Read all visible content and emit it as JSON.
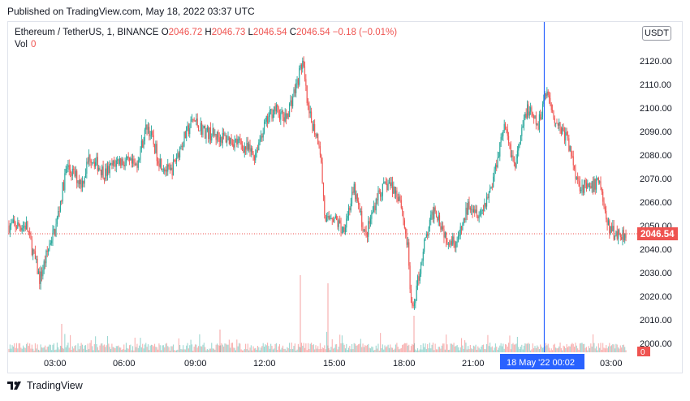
{
  "header": {
    "published_text": "Published on TradingView.com, May 18, 2022 03:37 UTC"
  },
  "legend": {
    "symbol": "Ethereum / TetherUS, 1, BINANCE",
    "open_label": "O",
    "open_value": "2046.72",
    "high_label": "H",
    "high_value": "2046.73",
    "low_label": "L",
    "low_value": "2046.54",
    "close_label": "C",
    "close_value": "2046.54",
    "change": "−0.18 (−0.01%)",
    "vol_label": "Vol",
    "vol_value": "0"
  },
  "currency_button": "USDT",
  "price_tag": "2046.54",
  "vol_tag": "0",
  "crosshair_time": "18 May '22   00:02",
  "footer": {
    "brand": "TradingView"
  },
  "colors": {
    "up": "#26a69a",
    "down": "#ef5350",
    "crosshair": "#2962ff",
    "last_price": "#ef5350"
  },
  "chart_data": {
    "type": "candlestick",
    "y_ticks": [
      "2000.00",
      "2010.00",
      "2020.00",
      "2030.00",
      "2040.00",
      "2050.00",
      "2060.00",
      "2070.00",
      "2080.00",
      "2090.00",
      "2100.00",
      "2110.00",
      "2120.00"
    ],
    "x_ticks": [
      "03:00",
      "06:00",
      "09:00",
      "12:00",
      "15:00",
      "18:00",
      "21:00",
      "03:00"
    ],
    "ylim": [
      1997,
      2131
    ],
    "last_price": 2046.54,
    "approx_close_path": [
      {
        "t": "01:45",
        "v": 2050
      },
      {
        "t": "02:20",
        "v": 2027
      },
      {
        "t": "02:50",
        "v": 2045
      },
      {
        "t": "03:00",
        "v": 2048
      },
      {
        "t": "03:30",
        "v": 2075
      },
      {
        "t": "04:10",
        "v": 2068
      },
      {
        "t": "04:30",
        "v": 2080
      },
      {
        "t": "05:10",
        "v": 2072
      },
      {
        "t": "05:45",
        "v": 2078
      },
      {
        "t": "06:30",
        "v": 2075
      },
      {
        "t": "07:00",
        "v": 2093
      },
      {
        "t": "07:30",
        "v": 2078
      },
      {
        "t": "08:00",
        "v": 2072
      },
      {
        "t": "08:30",
        "v": 2085
      },
      {
        "t": "09:00",
        "v": 2095
      },
      {
        "t": "09:30",
        "v": 2090
      },
      {
        "t": "10:00",
        "v": 2088
      },
      {
        "t": "10:30",
        "v": 2087
      },
      {
        "t": "11:00",
        "v": 2085
      },
      {
        "t": "11:40",
        "v": 2080
      },
      {
        "t": "12:00",
        "v": 2090
      },
      {
        "t": "12:30",
        "v": 2100
      },
      {
        "t": "13:00",
        "v": 2095
      },
      {
        "t": "13:30",
        "v": 2110
      },
      {
        "t": "13:45",
        "v": 2120
      },
      {
        "t": "14:00",
        "v": 2098
      },
      {
        "t": "14:30",
        "v": 2085
      },
      {
        "t": "14:45",
        "v": 2050
      },
      {
        "t": "15:00",
        "v": 2055
      },
      {
        "t": "15:30",
        "v": 2048
      },
      {
        "t": "16:00",
        "v": 2065
      },
      {
        "t": "16:30",
        "v": 2045
      },
      {
        "t": "17:00",
        "v": 2063
      },
      {
        "t": "17:30",
        "v": 2068
      },
      {
        "t": "18:00",
        "v": 2062
      },
      {
        "t": "18:20",
        "v": 2040
      },
      {
        "t": "18:30",
        "v": 2012
      },
      {
        "t": "18:50",
        "v": 2030
      },
      {
        "t": "19:00",
        "v": 2040
      },
      {
        "t": "19:30",
        "v": 2058
      },
      {
        "t": "20:00",
        "v": 2045
      },
      {
        "t": "20:30",
        "v": 2043
      },
      {
        "t": "21:00",
        "v": 2060
      },
      {
        "t": "21:30",
        "v": 2055
      },
      {
        "t": "22:00",
        "v": 2068
      },
      {
        "t": "22:30",
        "v": 2093
      },
      {
        "t": "23:00",
        "v": 2075
      },
      {
        "t": "23:30",
        "v": 2100
      },
      {
        "t": "00:00",
        "v": 2092
      },
      {
        "t": "00:20",
        "v": 2108
      },
      {
        "t": "00:45",
        "v": 2095
      },
      {
        "t": "01:15",
        "v": 2087
      },
      {
        "t": "01:45",
        "v": 2068
      },
      {
        "t": "02:15",
        "v": 2065
      },
      {
        "t": "02:40",
        "v": 2070
      },
      {
        "t": "03:00",
        "v": 2050
      },
      {
        "t": "03:20",
        "v": 2046.54
      }
    ]
  }
}
